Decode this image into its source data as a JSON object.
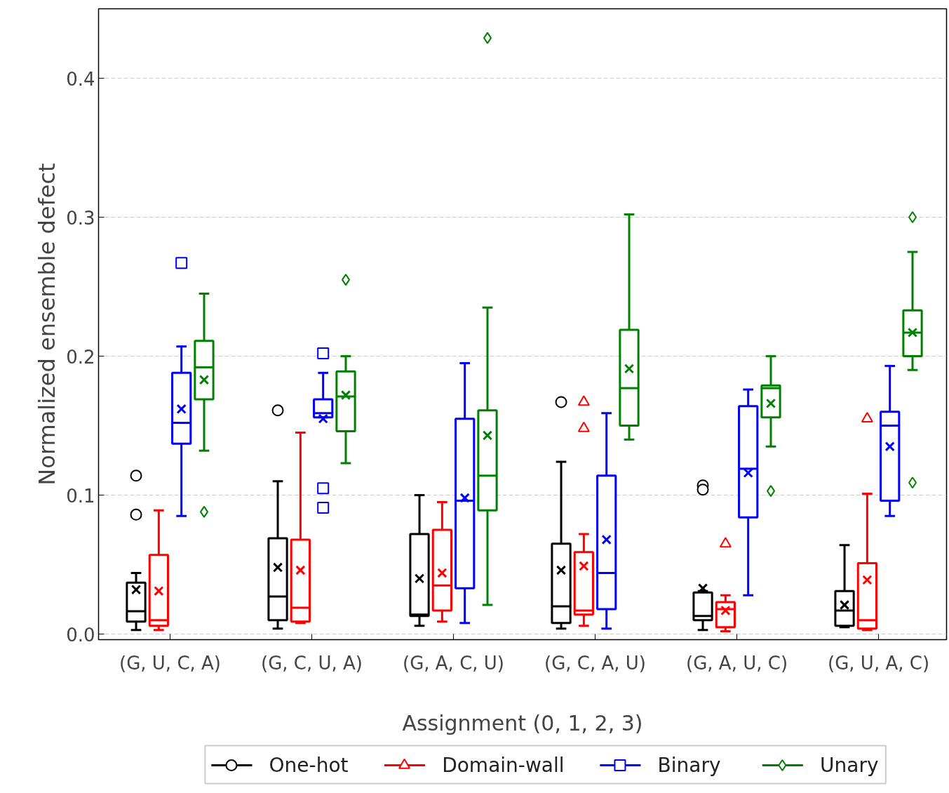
{
  "chart_data": {
    "type": "box",
    "xlabel": "Assignment (0, 1, 2, 3)",
    "ylabel": "Normalized ensemble defect",
    "categories": [
      "(G, U, C, A)",
      "(G, C, U, A)",
      "(G, A, C, U)",
      "(G, C, A, U)",
      "(G, A, U, C)",
      "(G, U, A, C)"
    ],
    "ylim": [
      -0.004,
      0.45
    ],
    "yticks": [
      {
        "value": 0,
        "label": "0.0"
      },
      0.1,
      0.2,
      0.3,
      0.4
    ],
    "grid": "y",
    "legend": "bottom",
    "series": [
      {
        "name": "One-hot",
        "color": "#000000",
        "marker": "circle",
        "boxes": [
          {
            "low": 0.003,
            "q1": 0.009,
            "median": 0.0165,
            "q3": 0.037,
            "high": 0.044,
            "mean": 0.032,
            "outliers": [
              0.114,
              0.086
            ]
          },
          {
            "low": 0.004,
            "q1": 0.01,
            "median": 0.027,
            "q3": 0.069,
            "high": 0.11,
            "mean": 0.048,
            "outliers": [
              0.161
            ]
          },
          {
            "low": 0.006,
            "q1": 0.013,
            "median": 0.014,
            "q3": 0.072,
            "high": 0.1,
            "mean": 0.04
          },
          {
            "low": 0.004,
            "q1": 0.008,
            "median": 0.02,
            "q3": 0.065,
            "high": 0.124,
            "mean": 0.046,
            "outliers": [
              0.167
            ]
          },
          {
            "low": 0.003,
            "q1": 0.01,
            "median": 0.013,
            "q3": 0.03,
            "high": 0.031,
            "mean": 0.033,
            "outliers": [
              0.107,
              0.104
            ]
          },
          {
            "low": 0.005,
            "q1": 0.006,
            "median": 0.017,
            "q3": 0.031,
            "high": 0.064,
            "mean": 0.021
          }
        ]
      },
      {
        "name": "Domain-wall",
        "color": "#ff0000",
        "marker": "triangle",
        "boxes": [
          {
            "low": 0.003,
            "q1": 0.006,
            "median": 0.01,
            "q3": 0.057,
            "high": 0.089,
            "mean": 0.031
          },
          {
            "low": 0.008,
            "q1": 0.009,
            "median": 0.019,
            "q3": 0.068,
            "high": 0.145,
            "mean": 0.046
          },
          {
            "low": 0.009,
            "q1": 0.017,
            "median": 0.035,
            "q3": 0.075,
            "high": 0.095,
            "mean": 0.044
          },
          {
            "low": 0.006,
            "q1": 0.014,
            "median": 0.017,
            "q3": 0.059,
            "high": 0.072,
            "mean": 0.049,
            "outliers": [
              0.167,
              0.148
            ]
          },
          {
            "low": 0.002,
            "q1": 0.005,
            "median": 0.018,
            "q3": 0.023,
            "high": 0.028,
            "mean": 0.017,
            "outliers": [
              0.065
            ]
          },
          {
            "low": 0.003,
            "q1": 0.004,
            "median": 0.01,
            "q3": 0.051,
            "high": 0.101,
            "mean": 0.039,
            "outliers": [
              0.155
            ]
          }
        ]
      },
      {
        "name": "Binary",
        "color": "#0000ff",
        "marker": "square",
        "boxes": [
          {
            "low": 0.085,
            "q1": 0.137,
            "median": 0.152,
            "q3": 0.188,
            "high": 0.207,
            "mean": 0.162,
            "outliers": [
              0.267
            ]
          },
          {
            "low": 0.156,
            "q1": 0.156,
            "median": 0.159,
            "q3": 0.169,
            "high": 0.188,
            "mean": 0.155,
            "outliers": [
              0.202,
              0.105,
              0.091
            ]
          },
          {
            "low": 0.008,
            "q1": 0.033,
            "median": 0.096,
            "q3": 0.155,
            "high": 0.195,
            "mean": 0.098
          },
          {
            "low": 0.004,
            "q1": 0.018,
            "median": 0.044,
            "q3": 0.114,
            "high": 0.159,
            "mean": 0.068
          },
          {
            "low": 0.028,
            "q1": 0.084,
            "median": 0.119,
            "q3": 0.164,
            "high": 0.176,
            "mean": 0.116
          },
          {
            "low": 0.085,
            "q1": 0.096,
            "median": 0.15,
            "q3": 0.16,
            "high": 0.193,
            "mean": 0.135
          }
        ]
      },
      {
        "name": "Unary",
        "color": "#008000",
        "marker": "diamond",
        "boxes": [
          {
            "low": 0.132,
            "q1": 0.169,
            "median": 0.192,
            "q3": 0.211,
            "high": 0.245,
            "mean": 0.183,
            "outliers": [
              0.088
            ]
          },
          {
            "low": 0.123,
            "q1": 0.146,
            "median": 0.171,
            "q3": 0.189,
            "high": 0.2,
            "mean": 0.172,
            "outliers": [
              0.255
            ]
          },
          {
            "low": 0.021,
            "q1": 0.089,
            "median": 0.114,
            "q3": 0.161,
            "high": 0.235,
            "mean": 0.143,
            "outliers": [
              0.429
            ]
          },
          {
            "low": 0.14,
            "q1": 0.15,
            "median": 0.177,
            "q3": 0.219,
            "high": 0.302,
            "mean": 0.191
          },
          {
            "low": 0.135,
            "q1": 0.156,
            "median": 0.177,
            "q3": 0.179,
            "high": 0.2,
            "mean": 0.166,
            "outliers": [
              0.103
            ]
          },
          {
            "low": 0.19,
            "q1": 0.2,
            "median": 0.217,
            "q3": 0.233,
            "high": 0.275,
            "mean": 0.217,
            "outliers": [
              0.3,
              0.109
            ]
          }
        ]
      }
    ]
  }
}
